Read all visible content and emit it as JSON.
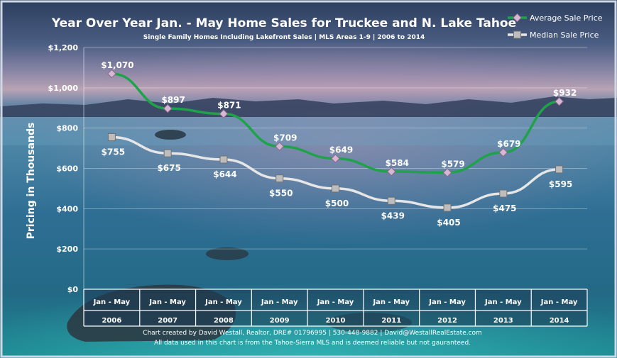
{
  "chart_data": {
    "type": "line",
    "title": "Year Over Year Jan. - May Home Sales for Truckee and N. Lake Tahoe",
    "subtitle": "Single Family Homes Including Lakefront Sales | MLS Areas 1-9 | 2006 to 2014",
    "ylabel": "Pricing in Thousands",
    "xlabel": "",
    "ylim": [
      0,
      1200
    ],
    "yticks": [
      0,
      200,
      400,
      600,
      800,
      1000,
      1200
    ],
    "ytick_labels": [
      "$0",
      "$200",
      "$400",
      "$600",
      "$800",
      "$1,000",
      "$1,200"
    ],
    "category_top": "Jan - May",
    "categories": [
      "2006",
      "2007",
      "2008",
      "2009",
      "2010",
      "2011",
      "2012",
      "2013",
      "2014"
    ],
    "series": [
      {
        "name": "Average Sale Price",
        "color": "#1fa24a",
        "marker": "diamond",
        "values": [
          1070,
          897,
          871,
          709,
          649,
          584,
          579,
          679,
          932
        ],
        "labels": [
          "$1,070",
          "$897",
          "$871",
          "$709",
          "$649",
          "$584",
          "$579",
          "$679",
          "$932"
        ]
      },
      {
        "name": "Median Sale Price",
        "color": "#e6e6e6",
        "marker": "square",
        "values": [
          755,
          675,
          644,
          550,
          500,
          439,
          405,
          475,
          595
        ],
        "labels": [
          "$755",
          "$675",
          "$644",
          "$550",
          "$500",
          "$439",
          "$405",
          "$475",
          "$595"
        ]
      }
    ],
    "legend_position": "top-right",
    "grid": true
  },
  "footer": {
    "line1": "Chart created by David Westall, Realtor, DRE# 01796995 | 530-448-9882 | David@WestallRealEstate.com",
    "line2": "All data used in this chart is from the Tahoe-Sierra MLS and is deemed reliable but  not gauranteed."
  },
  "colors": {
    "frame": "#cfd8e4",
    "table_bg": "#2a4a66"
  }
}
